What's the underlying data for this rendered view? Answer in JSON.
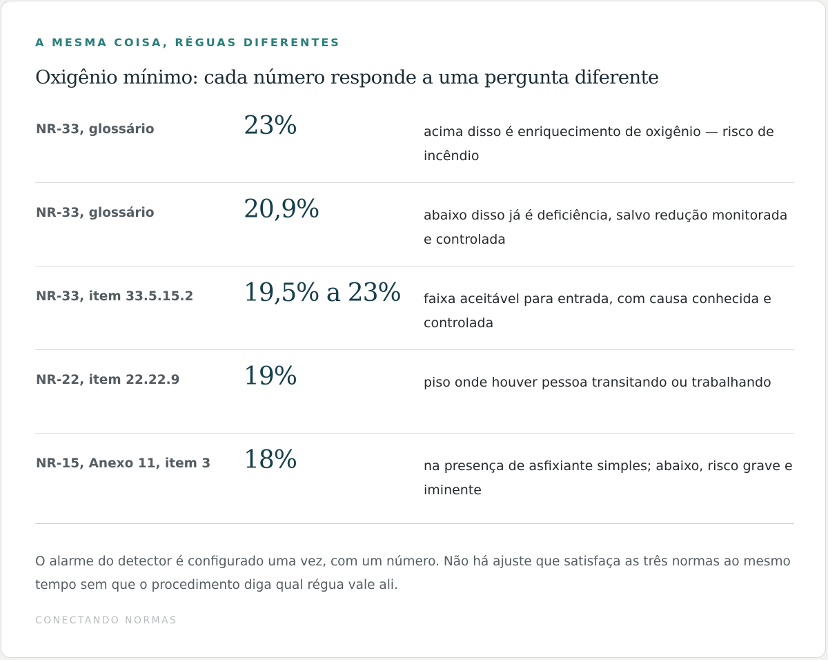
{
  "eyebrow": "A MESMA COISA, RÉGUAS DIFERENTES",
  "title": "Oxigênio mínimo: cada número responde a uma pergunta diferente",
  "rows": [
    {
      "source": "NR-33, glossário",
      "value": "23%",
      "description": "acima disso é enriquecimento de oxigênio — risco de incêndio"
    },
    {
      "source": "NR-33, glossário",
      "value": "20,9%",
      "description": "abaixo disso já é deficiência, salvo redução monitorada e controlada"
    },
    {
      "source": "NR-33, item 33.5.15.2",
      "value": "19,5% a 23%",
      "description": "faixa aceitável para entrada, com causa conhecida e controlada"
    },
    {
      "source": "NR-22, item 22.22.9",
      "value": "19%",
      "description": "piso onde houver pessoa transitando ou trabalhando"
    },
    {
      "source": "NR-15, Anexo 11, item 3",
      "value": "18%",
      "description": "na presença de asfixiante simples; abaixo, risco grave e iminente"
    }
  ],
  "note": "O alarme do detector é configurado uma vez, com um número. Não há ajuste que satisfaça as três normas ao mesmo tempo sem que o procedimento diga qual régua vale ali.",
  "footer": "CONECTANDO NORMAS",
  "colors": {
    "accent": "#2a7f7a",
    "value": "#153f4a",
    "title": "#1b2b33",
    "muted": "#555d63",
    "footer": "#b7bcbf"
  }
}
